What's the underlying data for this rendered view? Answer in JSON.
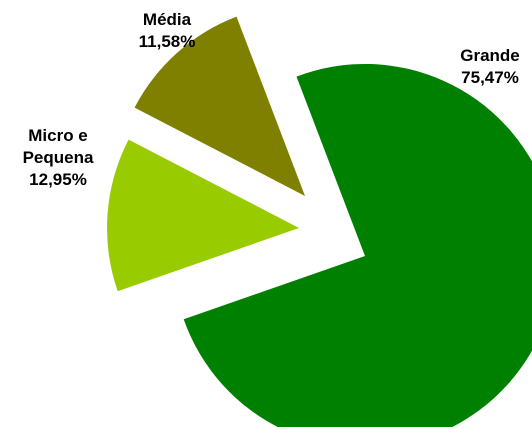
{
  "chart_data": {
    "type": "pie",
    "exploded": true,
    "slices": [
      {
        "label_lines": [
          "Grande"
        ],
        "value": 75.47,
        "value_text": "75,47%",
        "color": "#008000"
      },
      {
        "label_lines": [
          "Micro e",
          "Pequena"
        ],
        "value": 12.95,
        "value_text": "12,95%",
        "color": "#99cc00"
      },
      {
        "label_lines": [
          "Média"
        ],
        "value": 11.58,
        "value_text": "11,58%",
        "color": "#808000"
      }
    ]
  }
}
